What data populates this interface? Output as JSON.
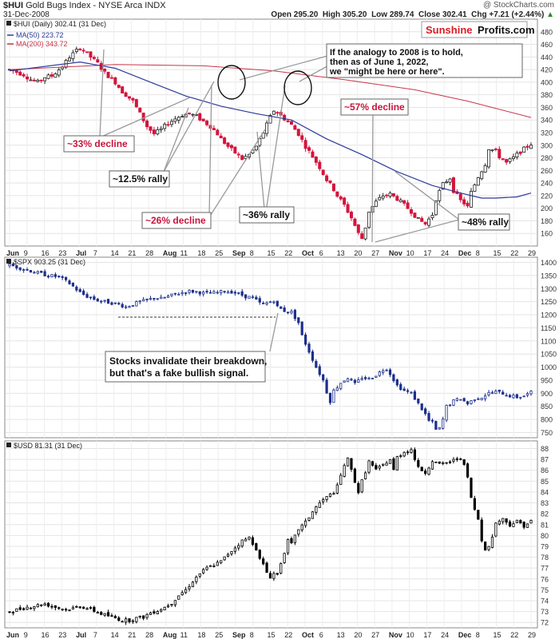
{
  "header": {
    "title_prefix": "$HUI",
    "title_rest": "Gold Bugs Index - NYSE Arca  INDX",
    "date": "31-Dec-2008",
    "open": "Open 295.20",
    "high": "High 305.20",
    "low": "Low 289.74",
    "close": "Close 302.41",
    "chg": "Chg +7.21 (+2.44%)",
    "chg_arrow": "▲",
    "watermark": "@ StockCharts.com"
  },
  "brand": {
    "part1": "Sunshine",
    "part2": "Profits.com"
  },
  "colors": {
    "up": "#ffffff",
    "down": "#d4143c",
    "spx": "#1c2f8c",
    "usd": "#000000",
    "ma50": "#2b3a9a",
    "ma200": "#c8364a",
    "red_text": "#c8143c"
  },
  "chart_data": [
    {
      "type": "candlestick",
      "title": "$HUI (Daily) 302.41 (31 Dec)",
      "legend": [
        "MA(50) 223.72",
        "MA(200) 343.72"
      ],
      "x_labels": [
        "Jun",
        "9",
        "16",
        "23",
        "Jul",
        "7",
        "14",
        "21",
        "28",
        "Aug",
        "11",
        "18",
        "25",
        "Sep",
        "8",
        "15",
        "22",
        "Oct",
        "6",
        "13",
        "20",
        "27",
        "Nov",
        "10",
        "17",
        "24",
        "Dec",
        "8",
        "15",
        "22",
        "29"
      ],
      "ylim": [
        140,
        500
      ],
      "y_ticks": [
        160,
        180,
        200,
        220,
        240,
        260,
        280,
        300,
        320,
        340,
        360,
        380,
        400,
        420,
        440,
        460,
        480
      ],
      "close_path": [
        [
          0,
          420
        ],
        [
          4,
          412
        ],
        [
          6,
          404
        ],
        [
          8,
          400
        ],
        [
          10,
          408
        ],
        [
          12,
          410
        ],
        [
          15,
          425
        ],
        [
          17,
          440
        ],
        [
          20,
          455
        ],
        [
          22,
          445
        ],
        [
          25,
          430
        ],
        [
          27,
          415
        ],
        [
          30,
          400
        ],
        [
          32,
          385
        ],
        [
          35,
          370
        ],
        [
          37,
          350
        ],
        [
          39,
          330
        ],
        [
          41,
          318
        ],
        [
          43,
          325
        ],
        [
          45,
          335
        ],
        [
          47,
          342
        ],
        [
          49,
          348
        ],
        [
          51,
          350
        ],
        [
          53,
          346
        ],
        [
          55,
          338
        ],
        [
          57,
          330
        ],
        [
          59,
          318
        ],
        [
          60,
          310
        ],
        [
          62,
          298
        ],
        [
          64,
          288
        ],
        [
          66,
          278
        ],
        [
          68,
          285
        ],
        [
          70,
          298
        ],
        [
          72,
          320
        ],
        [
          74,
          345
        ],
        [
          75,
          355
        ],
        [
          76,
          352
        ],
        [
          78,
          342
        ],
        [
          80,
          332
        ],
        [
          82,
          318
        ],
        [
          84,
          298
        ],
        [
          86,
          282
        ],
        [
          88,
          265
        ],
        [
          90,
          245
        ],
        [
          92,
          230
        ],
        [
          93,
          220
        ],
        [
          95,
          205
        ],
        [
          97,
          185
        ],
        [
          99,
          160
        ],
        [
          100,
          152
        ],
        [
          101,
          170
        ],
        [
          102,
          195
        ],
        [
          104,
          210
        ],
        [
          106,
          220
        ],
        [
          108,
          222
        ],
        [
          110,
          215
        ],
        [
          112,
          205
        ],
        [
          114,
          195
        ],
        [
          116,
          182
        ],
        [
          118,
          175
        ],
        [
          120,
          190
        ],
        [
          121,
          215
        ],
        [
          123,
          238
        ],
        [
          125,
          248
        ],
        [
          126,
          228
        ],
        [
          128,
          212
        ],
        [
          129,
          208
        ],
        [
          130,
          202
        ],
        [
          131,
          225
        ],
        [
          133,
          250
        ],
        [
          135,
          270
        ],
        [
          136,
          295
        ],
        [
          138,
          290
        ],
        [
          139,
          282
        ],
        [
          141,
          272
        ],
        [
          143,
          280
        ],
        [
          145,
          290
        ],
        [
          147,
          298
        ],
        [
          148,
          302
        ]
      ],
      "ma50": [
        [
          0,
          418
        ],
        [
          20,
          432
        ],
        [
          30,
          422
        ],
        [
          40,
          400
        ],
        [
          50,
          378
        ],
        [
          60,
          362
        ],
        [
          70,
          350
        ],
        [
          80,
          340
        ],
        [
          90,
          310
        ],
        [
          100,
          285
        ],
        [
          110,
          258
        ],
        [
          120,
          236
        ],
        [
          128,
          224
        ],
        [
          134,
          216
        ],
        [
          138,
          216
        ],
        [
          144,
          218
        ],
        [
          148,
          224
        ]
      ],
      "ma200": [
        [
          0,
          420
        ],
        [
          30,
          428
        ],
        [
          55,
          426
        ],
        [
          75,
          418
        ],
        [
          95,
          404
        ],
        [
          115,
          388
        ],
        [
          130,
          370
        ],
        [
          148,
          344
        ]
      ],
      "annotations": {
        "note": "If the analogy to 2008 is to hold, then as of June 1, 2022, we \"might be here or here\".",
        "d33": "~33% decline",
        "r125": "~12.5% rally",
        "d26": "~26% decline",
        "r36": "~36% rally",
        "d57": "~57% decline",
        "r48": "~48% rally"
      }
    },
    {
      "type": "candlestick",
      "title": "$SPX 903.25 (31 Dec)",
      "ylim": [
        730,
        1420
      ],
      "y_ticks": [
        750,
        800,
        850,
        900,
        950,
        1000,
        1050,
        1100,
        1150,
        1200,
        1250,
        1300,
        1350,
        1400
      ],
      "close_path": [
        [
          0,
          1390
        ],
        [
          4,
          1375
        ],
        [
          8,
          1360
        ],
        [
          11,
          1350
        ],
        [
          14,
          1345
        ],
        [
          17,
          1320
        ],
        [
          20,
          1285
        ],
        [
          22,
          1270
        ],
        [
          25,
          1255
        ],
        [
          27,
          1250
        ],
        [
          29,
          1245
        ],
        [
          31,
          1240
        ],
        [
          33,
          1230
        ],
        [
          35,
          1240
        ],
        [
          37,
          1250
        ],
        [
          39,
          1255
        ],
        [
          41,
          1265
        ],
        [
          43,
          1262
        ],
        [
          45,
          1270
        ],
        [
          47,
          1278
        ],
        [
          49,
          1285
        ],
        [
          51,
          1290
        ],
        [
          53,
          1288
        ],
        [
          55,
          1283
        ],
        [
          57,
          1282
        ],
        [
          59,
          1285
        ],
        [
          61,
          1290
        ],
        [
          63,
          1288
        ],
        [
          65,
          1280
        ],
        [
          67,
          1270
        ],
        [
          69,
          1265
        ],
        [
          70,
          1255
        ],
        [
          71,
          1245
        ],
        [
          72,
          1240
        ],
        [
          74,
          1250
        ],
        [
          75,
          1255
        ],
        [
          76,
          1230
        ],
        [
          78,
          1215
        ],
        [
          80,
          1210
        ],
        [
          82,
          1170
        ],
        [
          83,
          1120
        ],
        [
          85,
          1060
        ],
        [
          87,
          1000
        ],
        [
          89,
          950
        ],
        [
          90,
          905
        ],
        [
          91,
          870
        ],
        [
          92,
          910
        ],
        [
          94,
          940
        ],
        [
          96,
          960
        ],
        [
          98,
          935
        ],
        [
          100,
          960
        ],
        [
          102,
          955
        ],
        [
          104,
          970
        ],
        [
          106,
          990
        ],
        [
          107,
          995
        ],
        [
          108,
          975
        ],
        [
          110,
          930
        ],
        [
          112,
          910
        ],
        [
          114,
          900
        ],
        [
          116,
          860
        ],
        [
          118,
          820
        ],
        [
          119,
          795
        ],
        [
          120,
          790
        ],
        [
          121,
          760
        ],
        [
          122,
          765
        ],
        [
          123,
          800
        ],
        [
          124,
          850
        ],
        [
          126,
          870
        ],
        [
          128,
          880
        ],
        [
          130,
          860
        ],
        [
          132,
          880
        ],
        [
          134,
          885
        ],
        [
          136,
          900
        ],
        [
          138,
          905
        ],
        [
          140,
          900
        ],
        [
          142,
          890
        ],
        [
          144,
          885
        ],
        [
          146,
          890
        ],
        [
          148,
          903
        ]
      ],
      "annotation": "Stocks invalidate their breakdown, but that's a fake bullish signal."
    },
    {
      "type": "candlestick",
      "title": "$USD 81.31 (31 Dec)",
      "ylim": [
        71.5,
        88.7
      ],
      "y_ticks": [
        72,
        73,
        74,
        75,
        76,
        77,
        78,
        79,
        80,
        81,
        82,
        83,
        84,
        85,
        86,
        87,
        88
      ],
      "close_path": [
        [
          0,
          73
        ],
        [
          5,
          73.4
        ],
        [
          10,
          73.7
        ],
        [
          13,
          73.4
        ],
        [
          16,
          73.2
        ],
        [
          18,
          73.3
        ],
        [
          20,
          73.5
        ],
        [
          23,
          73.2
        ],
        [
          26,
          72.8
        ],
        [
          28,
          72.6
        ],
        [
          30,
          72.4
        ],
        [
          32,
          72.2
        ],
        [
          34,
          72.2
        ],
        [
          36,
          72.4
        ],
        [
          38,
          72.5
        ],
        [
          40,
          72.9
        ],
        [
          42,
          73.1
        ],
        [
          44,
          73.4
        ],
        [
          46,
          73.8
        ],
        [
          48,
          74.5
        ],
        [
          50,
          75
        ],
        [
          52,
          75.8
        ],
        [
          54,
          76.5
        ],
        [
          56,
          77
        ],
        [
          58,
          77.3
        ],
        [
          60,
          77.6
        ],
        [
          62,
          78.3
        ],
        [
          64,
          78.9
        ],
        [
          66,
          79.5
        ],
        [
          68,
          79.8
        ],
        [
          70,
          78.8
        ],
        [
          71,
          77.8
        ],
        [
          72,
          77.3
        ],
        [
          73,
          76.6
        ],
        [
          74,
          76.2
        ],
        [
          75,
          76.5
        ],
        [
          76,
          76.4
        ],
        [
          77,
          77.5
        ],
        [
          78,
          78.5
        ],
        [
          79,
          79.5
        ],
        [
          80,
          79.2
        ],
        [
          82,
          80.6
        ],
        [
          84,
          81.2
        ],
        [
          86,
          82.2
        ],
        [
          88,
          83
        ],
        [
          90,
          83.5
        ],
        [
          92,
          84
        ],
        [
          93,
          84.5
        ],
        [
          94,
          85.5
        ],
        [
          95,
          86.5
        ],
        [
          96,
          87
        ],
        [
          97,
          86
        ],
        [
          98,
          85
        ],
        [
          99,
          84
        ],
        [
          100,
          85
        ],
        [
          102,
          86.8
        ],
        [
          104,
          86
        ],
        [
          106,
          86.5
        ],
        [
          108,
          87
        ],
        [
          109,
          86
        ],
        [
          110,
          87.2
        ],
        [
          112,
          87.7
        ],
        [
          114,
          87.9
        ],
        [
          116,
          86.2
        ],
        [
          118,
          85.8
        ],
        [
          120,
          86.9
        ],
        [
          122,
          86.5
        ],
        [
          124,
          86.7
        ],
        [
          126,
          86.9
        ],
        [
          128,
          87.2
        ],
        [
          129,
          86.4
        ],
        [
          130,
          85.3
        ],
        [
          131,
          83.5
        ],
        [
          132,
          82.3
        ],
        [
          133,
          81.5
        ],
        [
          134,
          79.5
        ],
        [
          135,
          78.8
        ],
        [
          136,
          79.1
        ],
        [
          137,
          79.8
        ],
        [
          138,
          81.2
        ],
        [
          140,
          81.5
        ],
        [
          142,
          81
        ],
        [
          144,
          81.3
        ],
        [
          146,
          80.9
        ],
        [
          148,
          81.3
        ]
      ]
    }
  ]
}
